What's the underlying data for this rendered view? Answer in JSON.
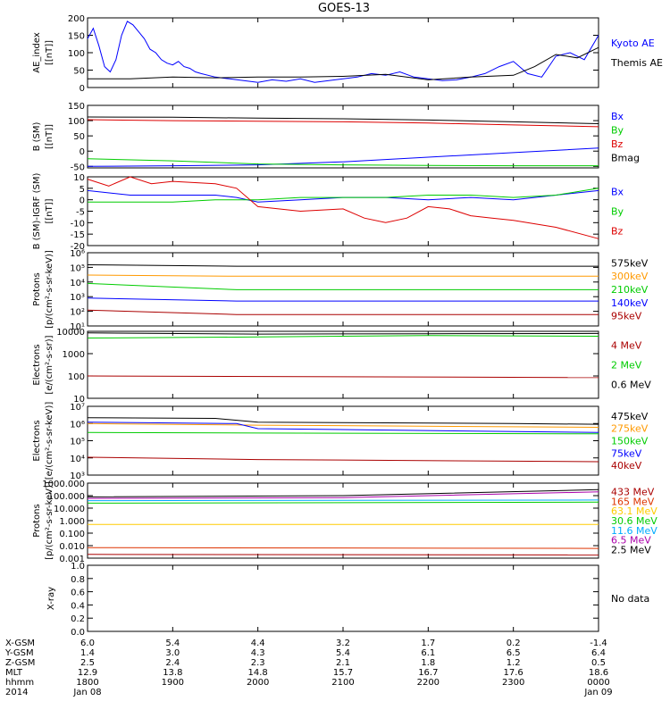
{
  "title": "GOES-13",
  "x_ticks": [
    "1800",
    "1900",
    "2000",
    "2100",
    "2200",
    "2300",
    "0000"
  ],
  "ephemeris": {
    "row_labels": [
      "X-GSM",
      "Y-GSM",
      "Z-GSM",
      "MLT",
      "hhmm",
      "2014"
    ],
    "columns": [
      [
        "6.0",
        "1.4",
        "2.5",
        "12.9",
        "1800",
        "Jan 08"
      ],
      [
        "5.4",
        "3.0",
        "2.4",
        "13.8",
        "1900",
        ""
      ],
      [
        "4.4",
        "4.3",
        "2.3",
        "14.8",
        "2000",
        ""
      ],
      [
        "3.2",
        "5.4",
        "2.1",
        "15.7",
        "2100",
        ""
      ],
      [
        "1.7",
        "6.1",
        "1.8",
        "16.7",
        "2200",
        ""
      ],
      [
        "0.2",
        "6.5",
        "1.2",
        "17.6",
        "2300",
        ""
      ],
      [
        "-1.4",
        "6.4",
        "0.5",
        "18.6",
        "0000",
        "Jan 09"
      ]
    ]
  },
  "chart_data": [
    {
      "type": "line",
      "ylabel": [
        "AE_index",
        "[nT]"
      ],
      "ylim": [
        0,
        200
      ],
      "y_ticks": [
        "0",
        "50",
        "100",
        "150",
        "200"
      ],
      "series": [
        {
          "name": "Kyoto AE",
          "color": "#0000ff",
          "x": [
            1800,
            1804,
            1808,
            1812,
            1816,
            1820,
            1824,
            1828,
            1832,
            1836,
            1840,
            1844,
            1848,
            1852,
            1856,
            1900,
            1904,
            1908,
            1912,
            1916,
            1920,
            1930,
            1940,
            1950,
            2000,
            2010,
            2020,
            2030,
            2040,
            2050,
            2100,
            2110,
            2120,
            2130,
            2140,
            2150,
            2200,
            2210,
            2220,
            2230,
            2240,
            2250,
            2300,
            2310,
            2320,
            2330,
            2340,
            2350,
            2400
          ],
          "values": [
            140,
            170,
            120,
            60,
            45,
            80,
            150,
            190,
            180,
            160,
            140,
            110,
            100,
            80,
            70,
            65,
            75,
            60,
            55,
            45,
            40,
            30,
            25,
            20,
            15,
            22,
            18,
            25,
            15,
            20,
            25,
            30,
            40,
            35,
            45,
            30,
            25,
            20,
            22,
            30,
            40,
            60,
            75,
            40,
            30,
            90,
            100,
            80,
            150
          ]
        },
        {
          "name": "Themis AE",
          "color": "#000000",
          "x": [
            1800,
            1830,
            1900,
            1930,
            2000,
            2030,
            2100,
            2130,
            2200,
            2230,
            2300,
            2315,
            2330,
            2345,
            2400
          ],
          "values": [
            25,
            25,
            30,
            28,
            30,
            30,
            32,
            38,
            22,
            30,
            35,
            60,
            95,
            85,
            115
          ]
        }
      ]
    },
    {
      "type": "line",
      "ylabel": [
        "B (SM)",
        "[nT]"
      ],
      "ylim": [
        -55,
        150
      ],
      "y_ticks": [
        "-50",
        "0",
        "50",
        "100",
        "150"
      ],
      "series": [
        {
          "name": "Bx",
          "color": "#0000ff",
          "x": [
            1800,
            1900,
            2000,
            2100,
            2200,
            2300,
            2400
          ],
          "values": [
            -50,
            -48,
            -45,
            -35,
            -20,
            -5,
            10
          ]
        },
        {
          "name": "By",
          "color": "#00cc00",
          "x": [
            1800,
            1900,
            2000,
            2100,
            2200,
            2300,
            2400
          ],
          "values": [
            -25,
            -32,
            -42,
            -45,
            -47,
            -48,
            -48
          ]
        },
        {
          "name": "Bz",
          "color": "#dd0000",
          "x": [
            1800,
            1900,
            2000,
            2100,
            2200,
            2300,
            2400
          ],
          "values": [
            103,
            100,
            98,
            96,
            92,
            86,
            80
          ]
        },
        {
          "name": "Bmag",
          "color": "#000000",
          "x": [
            1800,
            1900,
            2000,
            2100,
            2200,
            2300,
            2400
          ],
          "values": [
            112,
            111,
            108,
            106,
            102,
            96,
            90
          ]
        }
      ]
    },
    {
      "type": "line",
      "ylabel": [
        "B (SM)-IGRF (SM)",
        "[nT]"
      ],
      "ylim": [
        -20,
        10
      ],
      "y_ticks": [
        "-20",
        "-15",
        "-10",
        "-5",
        "0",
        "5",
        "10"
      ],
      "series": [
        {
          "name": "Bx",
          "color": "#0000ff",
          "x": [
            1800,
            1830,
            1900,
            1930,
            1945,
            2000,
            2030,
            2100,
            2130,
            2200,
            2230,
            2300,
            2330,
            2400
          ],
          "values": [
            4,
            2,
            2,
            2,
            1,
            -1,
            0,
            1,
            1,
            0,
            1,
            0,
            2,
            4
          ]
        },
        {
          "name": "By",
          "color": "#00cc00",
          "x": [
            1800,
            1830,
            1900,
            1930,
            2000,
            2030,
            2100,
            2130,
            2200,
            2230,
            2300,
            2330,
            2400
          ],
          "values": [
            -1,
            -1,
            -1,
            0,
            0,
            1,
            1,
            1,
            2,
            2,
            1,
            2,
            5
          ]
        },
        {
          "name": "Bz",
          "color": "#dd0000",
          "x": [
            1800,
            1815,
            1830,
            1845,
            1900,
            1930,
            1945,
            2000,
            2030,
            2100,
            2115,
            2130,
            2145,
            2200,
            2215,
            2230,
            2245,
            2300,
            2330,
            2400
          ],
          "values": [
            9,
            6,
            10,
            7,
            8,
            7,
            5,
            -3,
            -5,
            -4,
            -8,
            -10,
            -8,
            -3,
            -4,
            -7,
            -8,
            -9,
            -12,
            -17
          ]
        }
      ]
    },
    {
      "type": "line",
      "log": true,
      "ylabel": [
        "Protons",
        "p/(cm²-s-sr-keV)"
      ],
      "ylim": [
        10,
        1000000
      ],
      "y_ticks": [
        "10¹",
        "10²",
        "10³",
        "10⁴",
        "10⁵",
        "10⁶"
      ],
      "y_tick_values": [
        10,
        100,
        1000,
        10000,
        100000,
        1000000
      ],
      "series": [
        {
          "name": "575keV",
          "color": "#000000",
          "x": [
            1800,
            1945,
            2400
          ],
          "values": [
            150000,
            120000,
            120000
          ]
        },
        {
          "name": "300keV",
          "color": "#ff9900",
          "x": [
            1800,
            1945,
            2400
          ],
          "values": [
            30000,
            25000,
            25000
          ]
        },
        {
          "name": "210keV",
          "color": "#00cc00",
          "x": [
            1800,
            1945,
            2400
          ],
          "values": [
            8000,
            3000,
            3000
          ]
        },
        {
          "name": "140keV",
          "color": "#0000ff",
          "x": [
            1800,
            1945,
            2400
          ],
          "values": [
            800,
            500,
            500
          ]
        },
        {
          "name": "95keV",
          "color": "#aa0000",
          "x": [
            1800,
            1945,
            2400
          ],
          "values": [
            120,
            60,
            60
          ]
        }
      ]
    },
    {
      "type": "line",
      "log": true,
      "ylabel": [
        "Electrons",
        "e/(cm²-s-sr)"
      ],
      "ylim": [
        10,
        10000
      ],
      "y_ticks": [
        "10",
        "100",
        "1000",
        "10000"
      ],
      "y_tick_values": [
        10,
        100,
        1000,
        10000
      ],
      "series": [
        {
          "name": "4 MeV",
          "color": "#aa0000",
          "x": [
            1800,
            2400
          ],
          "values": [
            100,
            85
          ]
        },
        {
          "name": "2 MeV",
          "color": "#00cc00",
          "x": [
            1800,
            1945,
            2200,
            2400
          ],
          "values": [
            5000,
            5500,
            6500,
            6000
          ]
        },
        {
          "name": "0.6 MeV",
          "color": "#000000",
          "x": [
            1800,
            2000,
            2200,
            2400
          ],
          "values": [
            8500,
            7500,
            7800,
            8000
          ]
        }
      ]
    },
    {
      "type": "line",
      "log": true,
      "ylabel": [
        "Electrons",
        "e/(cm²-s-sr-keV)"
      ],
      "ylim": [
        1000,
        10000000
      ],
      "y_ticks": [
        "10³",
        "10⁴",
        "10⁵",
        "10⁶",
        "10⁷"
      ],
      "y_tick_values": [
        1000,
        10000,
        100000,
        1000000,
        10000000
      ],
      "series": [
        {
          "name": "475keV",
          "color": "#000000",
          "x": [
            1800,
            1930,
            2000,
            2300,
            2400
          ],
          "values": [
            2200000,
            2000000,
            1200000,
            1000000,
            900000
          ]
        },
        {
          "name": "275keV",
          "color": "#ff9900",
          "x": [
            1800,
            2000,
            2400
          ],
          "values": [
            1000000,
            800000,
            600000
          ]
        },
        {
          "name": "150keV",
          "color": "#00cc00",
          "x": [
            1800,
            2000,
            2400
          ],
          "values": [
            300000,
            280000,
            250000
          ]
        },
        {
          "name": "75keV",
          "color": "#0000ff",
          "x": [
            1800,
            1945,
            2000,
            2400
          ],
          "values": [
            1200000,
            1000000,
            500000,
            300000
          ]
        },
        {
          "name": "40keV",
          "color": "#aa0000",
          "x": [
            1800,
            2000,
            2400
          ],
          "values": [
            11000,
            8000,
            6000
          ]
        }
      ]
    },
    {
      "type": "line",
      "log": true,
      "ylabel": [
        "Protons",
        "p/(cm²-s-sr-keV)"
      ],
      "ylim": [
        0.001,
        1000
      ],
      "y_ticks": [
        "0.001",
        "0.010",
        "0.100",
        "1.000",
        "10.000",
        "100.000",
        "1000.000"
      ],
      "y_tick_values": [
        0.001,
        0.01,
        0.1,
        1,
        10,
        100,
        1000
      ],
      "series": [
        {
          "name": "433 MeV",
          "color": "#aa0000",
          "x": [
            1800,
            2400
          ],
          "values": [
            0.002,
            0.0018
          ]
        },
        {
          "name": "165 MeV",
          "color": "#dd3300",
          "x": [
            1800,
            2400
          ],
          "values": [
            0.007,
            0.006
          ]
        },
        {
          "name": "63.1 MeV",
          "color": "#ffcc00",
          "x": [
            1800,
            2400
          ],
          "values": [
            0.5,
            0.5
          ]
        },
        {
          "name": "30.6 MeV",
          "color": "#00cc00",
          "x": [
            1800,
            2400
          ],
          "values": [
            25,
            30
          ]
        },
        {
          "name": "11.6 MeV",
          "color": "#00aaff",
          "x": [
            1800,
            2400
          ],
          "values": [
            40,
            45
          ]
        },
        {
          "name": "6.5 MeV",
          "color": "#aa00aa",
          "x": [
            1800,
            2100,
            2400
          ],
          "values": [
            60,
            70,
            200
          ]
        },
        {
          "name": "2.5 MeV",
          "color": "#000000",
          "x": [
            1800,
            2100,
            2400
          ],
          "values": [
            80,
            100,
            300
          ]
        }
      ]
    },
    {
      "type": "line",
      "ylabel": [
        "X-ray",
        ""
      ],
      "ylim": [
        0,
        1
      ],
      "y_ticks": [
        "0.0",
        "0.2",
        "0.4",
        "0.6",
        "0.8",
        "1.0"
      ],
      "y_tick_values": [
        0,
        0.2,
        0.4,
        0.6,
        0.8,
        1.0
      ],
      "series": [],
      "note": "No data"
    }
  ]
}
